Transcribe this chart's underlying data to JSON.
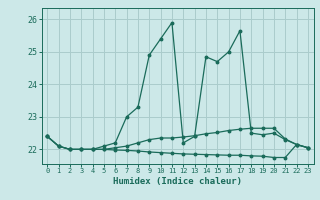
{
  "title": "",
  "xlabel": "Humidex (Indice chaleur)",
  "xlim": [
    -0.5,
    23.5
  ],
  "ylim": [
    21.55,
    26.35
  ],
  "yticks": [
    22,
    23,
    24,
    25,
    26
  ],
  "xticks": [
    0,
    1,
    2,
    3,
    4,
    5,
    6,
    7,
    8,
    9,
    10,
    11,
    12,
    13,
    14,
    15,
    16,
    17,
    18,
    19,
    20,
    21,
    22,
    23
  ],
  "background_color": "#cce8e8",
  "grid_color": "#aacccc",
  "line_color": "#1a6b5a",
  "curves": [
    {
      "x": [
        0,
        1,
        2,
        3,
        4,
        5,
        6,
        7,
        8,
        9,
        10,
        11,
        12,
        13,
        14,
        15,
        16,
        17,
        18,
        19,
        20,
        21,
        22,
        23
      ],
      "y": [
        22.4,
        22.1,
        22.0,
        22.0,
        22.0,
        22.1,
        22.2,
        23.0,
        23.3,
        24.9,
        25.4,
        25.9,
        22.2,
        22.4,
        24.85,
        24.7,
        25.0,
        25.65,
        22.5,
        22.45,
        22.5,
        22.3,
        22.15,
        22.05
      ]
    },
    {
      "x": [
        0,
        1,
        2,
        3,
        4,
        5,
        6,
        7,
        8,
        9,
        10,
        11,
        12,
        13,
        14,
        15,
        16,
        17,
        18,
        19,
        20,
        21,
        22,
        23
      ],
      "y": [
        22.4,
        22.1,
        22.0,
        22.0,
        22.0,
        22.0,
        22.05,
        22.1,
        22.2,
        22.3,
        22.35,
        22.35,
        22.38,
        22.42,
        22.48,
        22.52,
        22.58,
        22.62,
        22.65,
        22.65,
        22.65,
        22.32,
        22.15,
        22.05
      ]
    },
    {
      "x": [
        0,
        1,
        2,
        3,
        4,
        5,
        6,
        7,
        8,
        9,
        10,
        11,
        12,
        13,
        14,
        15,
        16,
        17,
        18,
        19,
        20,
        21,
        22,
        23
      ],
      "y": [
        22.4,
        22.1,
        22.0,
        22.0,
        22.0,
        22.0,
        21.98,
        21.97,
        21.95,
        21.92,
        21.9,
        21.88,
        21.86,
        21.85,
        21.84,
        21.83,
        21.82,
        21.82,
        21.8,
        21.79,
        21.75,
        21.75,
        22.15,
        22.05
      ]
    }
  ]
}
